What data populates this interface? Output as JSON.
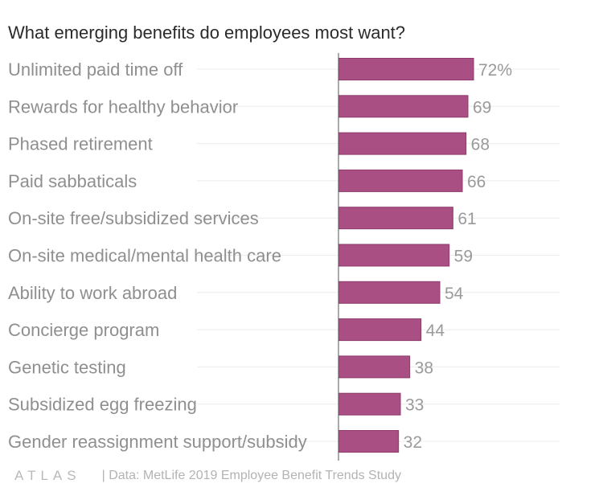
{
  "title": "What emerging benefits do employees most want?",
  "footer": {
    "logo_text": "ATLAS",
    "source": "| Data: MetLife 2019 Employee Benefit Trends Study"
  },
  "colors": {
    "bar": "#a94f83",
    "bar_stroke": "#8e3a6b",
    "label": "#8f8f8f",
    "value": "#9a9a9a",
    "grid": "#ececec",
    "axis": "#555555"
  },
  "chart_data": {
    "type": "bar",
    "orientation": "horizontal",
    "title": "What emerging benefits do employees most want?",
    "categories": [
      "Unlimited paid time off",
      "Rewards for healthy behavior",
      "Phased retirement",
      "Paid sabbaticals",
      "On-site free/subsidized services",
      "On-site medical/mental health care",
      "Ability to work abroad",
      "Concierge program",
      "Genetic testing",
      "Subsidized egg freezing",
      "Gender reassignment support/subsidy"
    ],
    "values": [
      72,
      69,
      68,
      66,
      61,
      59,
      54,
      44,
      38,
      33,
      32
    ],
    "value_labels": [
      "72%",
      "69",
      "68",
      "66",
      "61",
      "59",
      "54",
      "44",
      "38",
      "33",
      "32"
    ],
    "unit": "%",
    "xlim": [
      0,
      115
    ],
    "grid": true
  }
}
